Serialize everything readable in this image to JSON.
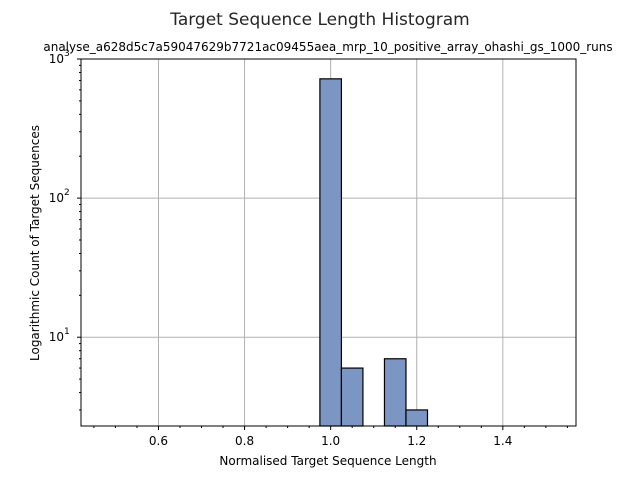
{
  "chart_data": {
    "type": "bar",
    "title": "Target Sequence Length Histogram",
    "subtitle": "analyse_a628d5c7a59047629b7721ac09455aea_mrp_10_positive_array_ohashi_gs_1000_runs",
    "xlabel": "Normalised Target Sequence Length",
    "ylabel": "Logarithmic Count of Target Sequences",
    "xlim": [
      0.42,
      1.57
    ],
    "ylim": [
      2.3,
      1000
    ],
    "yscale": "log",
    "grid": true,
    "x_ticks": [
      "0.6",
      "0.8",
      "1.0",
      "1.2",
      "1.4"
    ],
    "x_tick_values": [
      0.6,
      0.8,
      1.0,
      1.2,
      1.4
    ],
    "y_ticks": [
      {
        "base": "10",
        "exp": "1",
        "value": 10
      },
      {
        "base": "10",
        "exp": "2",
        "value": 100
      },
      {
        "base": "10",
        "exp": "3",
        "value": 1000
      }
    ],
    "bars": [
      {
        "x0": 0.975,
        "x1": 1.025,
        "value": 720
      },
      {
        "x0": 1.025,
        "x1": 1.075,
        "value": 6
      },
      {
        "x0": 1.125,
        "x1": 1.175,
        "value": 7
      },
      {
        "x0": 1.175,
        "x1": 1.225,
        "value": 3
      }
    ],
    "bar_color": "#7b96c3"
  }
}
